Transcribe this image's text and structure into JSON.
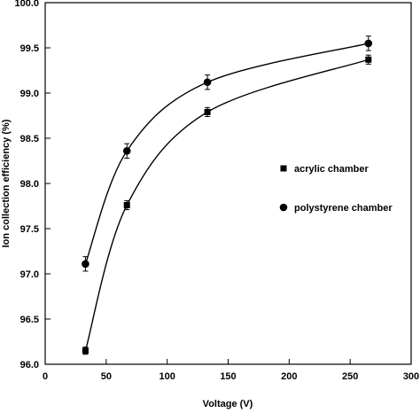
{
  "chart_data": {
    "type": "line",
    "title": "",
    "xlabel": "Voltage (V)",
    "ylabel": "Ion collection efficiency (%)",
    "xlim": [
      0,
      300
    ],
    "ylim": [
      96.0,
      100.0
    ],
    "xticks": [
      0,
      50,
      100,
      150,
      200,
      250,
      300
    ],
    "xtick_labels": [
      "0",
      "50",
      "100",
      "150",
      "200",
      "250",
      "300"
    ],
    "yticks": [
      96.0,
      96.5,
      97.0,
      97.5,
      98.0,
      98.5,
      99.0,
      99.5,
      100.0
    ],
    "ytick_labels": [
      "96.0",
      "96.5",
      "97.0",
      "97.5",
      "98.0",
      "98.5",
      "99.0",
      "99.5",
      "100.0"
    ],
    "grid": false,
    "legend_position": "right",
    "series": [
      {
        "name": "acrylic chamber",
        "marker": "square",
        "x": [
          33,
          67,
          133,
          265
        ],
        "y": [
          96.15,
          97.76,
          98.79,
          99.37
        ],
        "err": [
          0.04,
          0.05,
          0.05,
          0.05
        ]
      },
      {
        "name": "polystyrene chamber",
        "marker": "circle",
        "x": [
          33,
          67,
          133,
          265
        ],
        "y": [
          97.11,
          98.36,
          99.12,
          99.55
        ],
        "err": [
          0.08,
          0.08,
          0.08,
          0.08
        ]
      }
    ]
  }
}
